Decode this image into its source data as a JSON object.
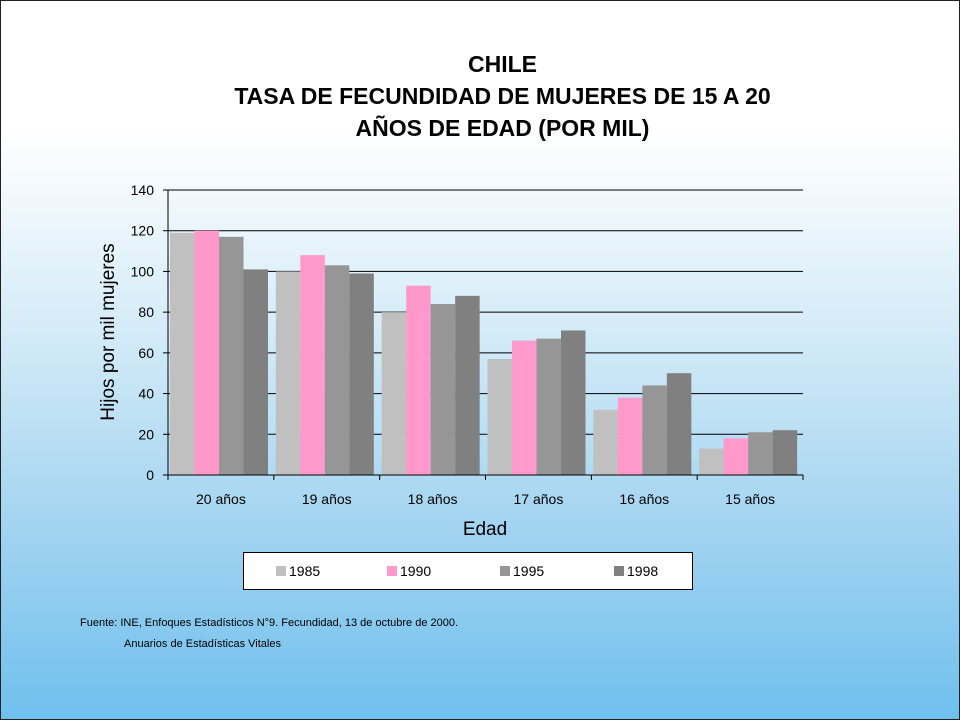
{
  "title": {
    "line1": "CHILE",
    "line2": "TASA DE FECUNDIDAD DE MUJERES DE 15 A 20",
    "line3": "AÑOS DE EDAD (POR MIL)"
  },
  "source": {
    "line1": "Fuente: INE, Enfoques Estadísticos N°9. Fecundidad, 13 de octubre de 2000.",
    "line2": "Anuarios de Estadísticas Vitales"
  },
  "chart_data": {
    "type": "bar",
    "title": "CHILE TASA DE FECUNDIDAD DE MUJERES DE 15 A 20 AÑOS DE EDAD (POR MIL)",
    "xlabel": "Edad",
    "ylabel": "Hijos por mil mujeres",
    "ylim": [
      0,
      140
    ],
    "yticks": [
      0,
      20,
      40,
      60,
      80,
      100,
      120,
      140
    ],
    "grid": true,
    "legend_position": "bottom",
    "categories": [
      "20 años",
      "19 años",
      "18 años",
      "17 años",
      "16 años",
      "15 años"
    ],
    "series": [
      {
        "name": "1985",
        "color": "#c0c0c0",
        "values": [
          119,
          100,
          80,
          57,
          32,
          13
        ]
      },
      {
        "name": "1990",
        "color": "#ff99cc",
        "values": [
          120,
          108,
          93,
          66,
          38,
          18
        ]
      },
      {
        "name": "1995",
        "color": "#969696",
        "values": [
          117,
          103,
          84,
          67,
          44,
          21
        ]
      },
      {
        "name": "1998",
        "color": "#808080",
        "values": [
          101,
          99,
          88,
          71,
          50,
          22
        ]
      }
    ]
  }
}
